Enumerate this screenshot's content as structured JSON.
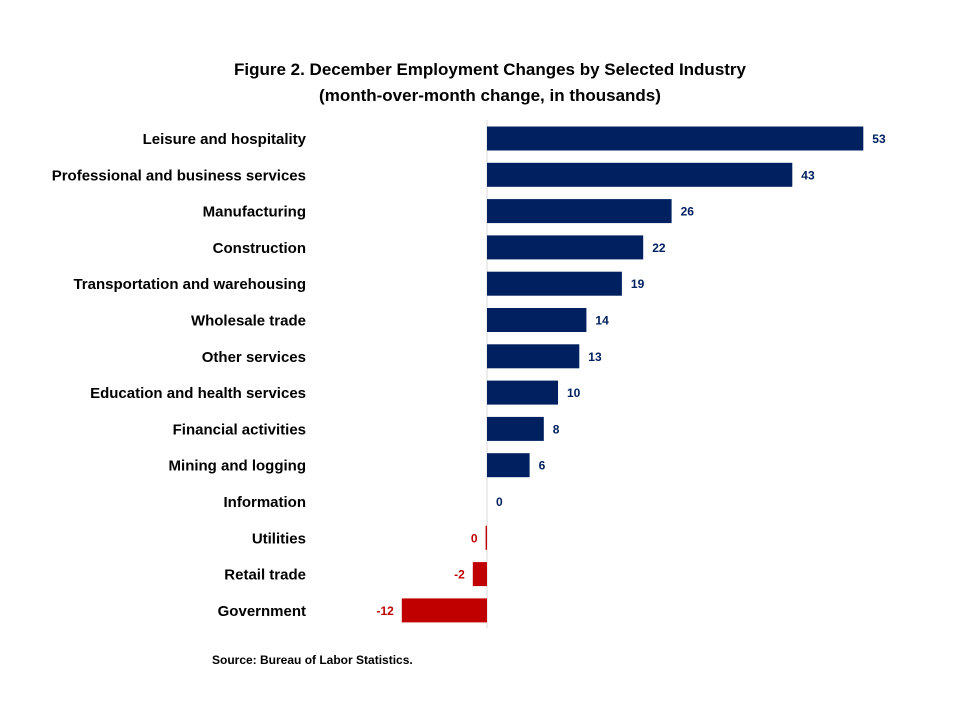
{
  "chart_data": {
    "type": "bar",
    "orientation": "horizontal",
    "title": "Figure 2. December Employment Changes by Selected Industry",
    "subtitle": "(month-over-month  change, in thousands)",
    "source": "Source: Bureau of Labor Statistics.",
    "categories": [
      "Leisure and hospitality",
      "Professional and business services",
      "Manufacturing",
      "Construction",
      "Transportation and warehousing",
      "Wholesale trade",
      "Other services",
      "Education and health services",
      "Financial activities",
      "Mining and logging",
      "Information",
      "Utilities",
      "Retail trade",
      "Government"
    ],
    "values": [
      53,
      43,
      26,
      22,
      19,
      14,
      13,
      10,
      8,
      6,
      0,
      -0.2,
      -2,
      -12
    ],
    "value_labels": [
      "53",
      "43",
      "26",
      "22",
      "19",
      "14",
      "13",
      "10",
      "8",
      "6",
      "0",
      "0",
      "-2",
      "-12"
    ],
    "xlim": [
      -12,
      53
    ],
    "grid": false,
    "legend": "none",
    "colors": {
      "positive": "#002060",
      "negative": "#C00000",
      "axis": "#d9d9d9"
    }
  }
}
